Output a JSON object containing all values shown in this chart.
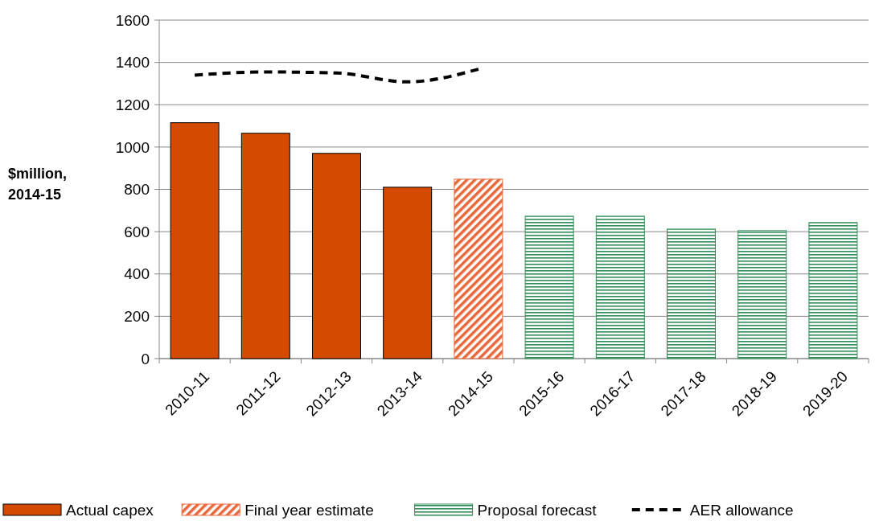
{
  "chart_data": {
    "type": "bar",
    "ylabel": "$million, 2014-15",
    "categories": [
      "2010-11",
      "2011-12",
      "2012-13",
      "2013-14",
      "2014-15",
      "2015-16",
      "2016-17",
      "2017-18",
      "2018-19",
      "2019-20"
    ],
    "series": [
      {
        "name": "Actual capex",
        "color": "#d44a00",
        "values": [
          1115,
          1065,
          970,
          810,
          null,
          null,
          null,
          null,
          null,
          null
        ]
      },
      {
        "name": "Final year estimate",
        "color": "#e8673a",
        "values": [
          null,
          null,
          null,
          null,
          848,
          null,
          null,
          null,
          null,
          null
        ]
      },
      {
        "name": "Proposal forecast",
        "color": "#2e8b57",
        "values": [
          null,
          null,
          null,
          null,
          null,
          673,
          673,
          612,
          605,
          643
        ]
      },
      {
        "name": "AER allowance",
        "type": "line",
        "color": "#000000",
        "line_style": "dashed",
        "values": [
          1340,
          1355,
          1350,
          1308,
          1368,
          null,
          null,
          null,
          null,
          null
        ]
      }
    ],
    "ylim": [
      0,
      1600
    ],
    "yticks": [
      0,
      200,
      400,
      600,
      800,
      1000,
      1200,
      1400,
      1600
    ],
    "grid": "y",
    "legend": "bottom"
  }
}
